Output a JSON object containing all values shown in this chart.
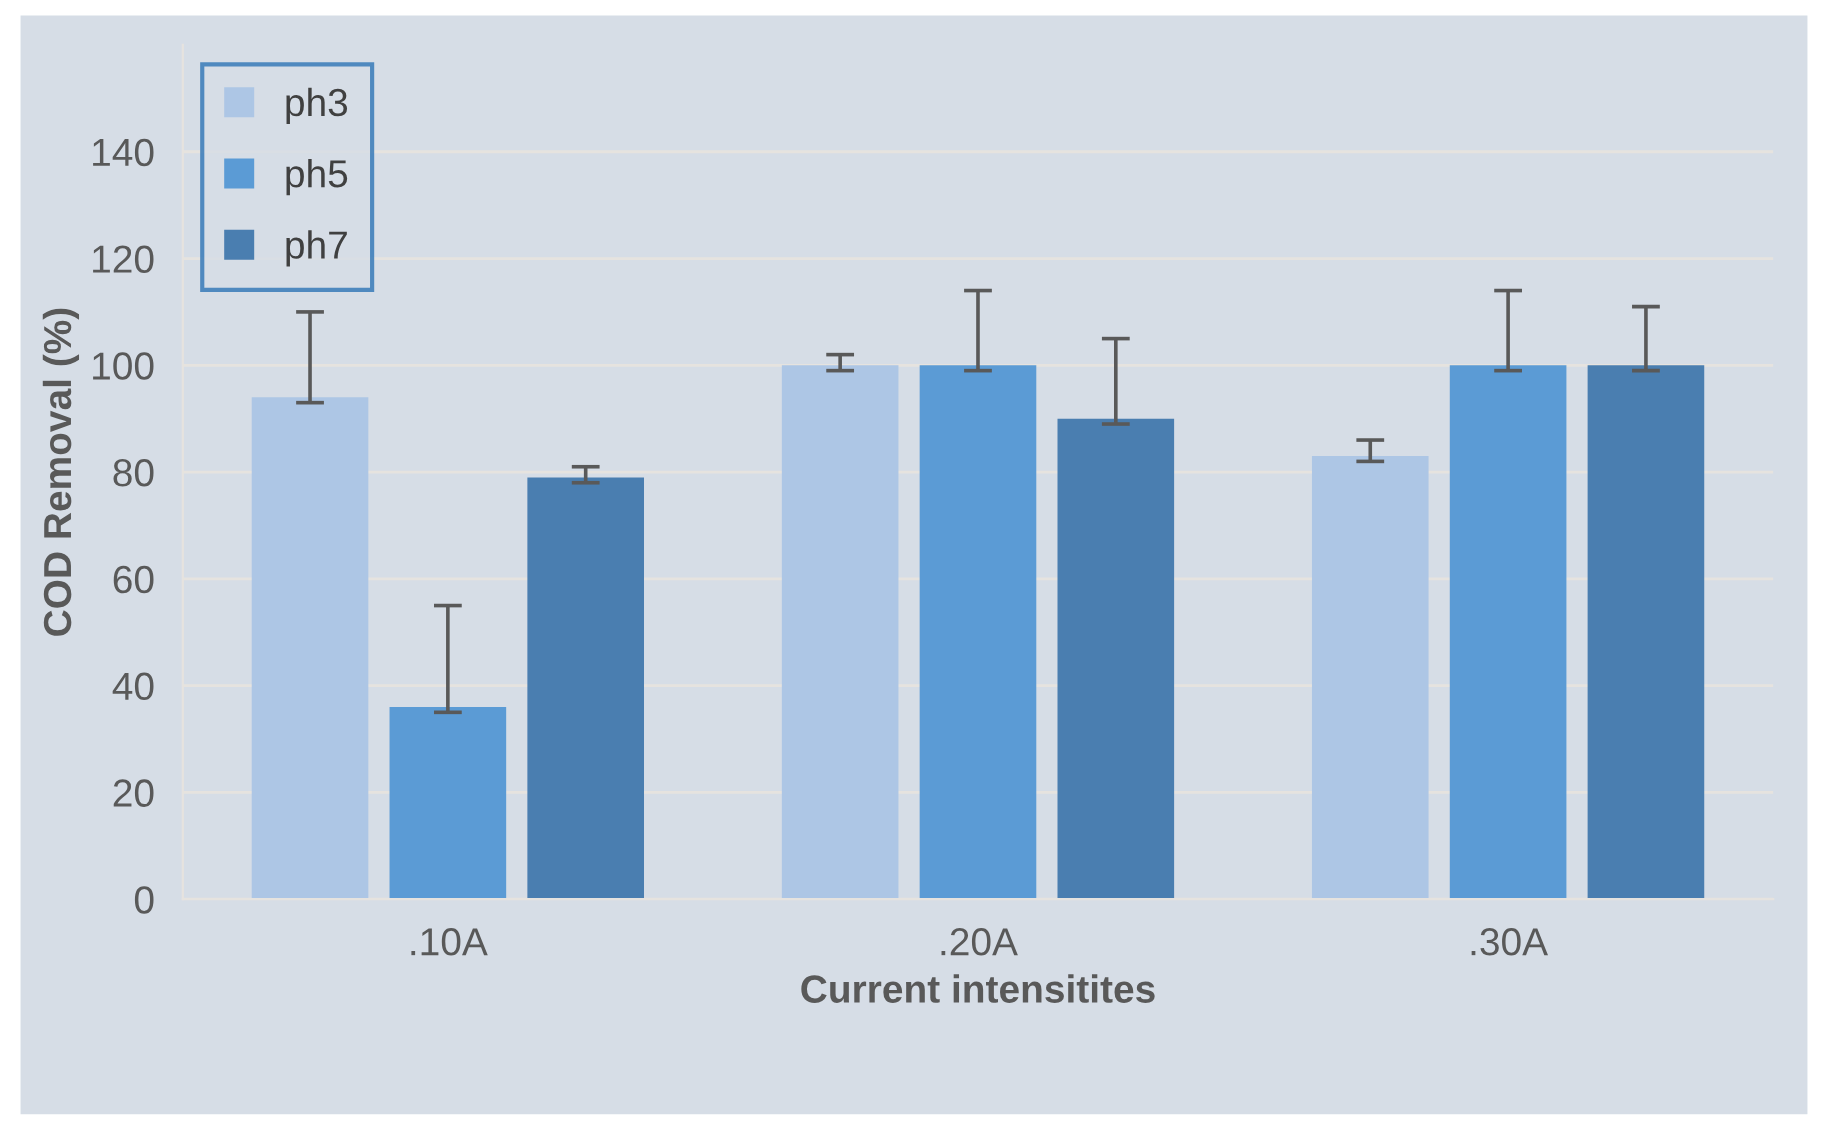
{
  "chart_data": {
    "type": "bar",
    "xlabel": "Current intensitites",
    "ylabel": "COD Removal (%)",
    "categories": [
      ".10A",
      ".20A",
      ".30A"
    ],
    "series": [
      {
        "name": "ph3",
        "color": "#adc6e5",
        "values": [
          94,
          100,
          83
        ],
        "errors": [
          [
            93,
            110
          ],
          [
            99,
            102
          ],
          [
            82,
            86
          ]
        ]
      },
      {
        "name": "ph5",
        "color": "#5b9bd5",
        "values": [
          36,
          100,
          100
        ],
        "errors": [
          [
            35,
            55
          ],
          [
            99,
            114
          ],
          [
            99,
            114
          ]
        ]
      },
      {
        "name": "ph7",
        "color": "#4a7eb0",
        "values": [
          79,
          90,
          100
        ],
        "errors": [
          [
            78,
            81
          ],
          [
            89,
            105
          ],
          [
            99,
            111
          ]
        ]
      }
    ],
    "ylim": [
      0,
      160
    ],
    "yticks": [
      0,
      20,
      40,
      60,
      80,
      100,
      120,
      140
    ],
    "grid": "y",
    "legend": "top left"
  }
}
